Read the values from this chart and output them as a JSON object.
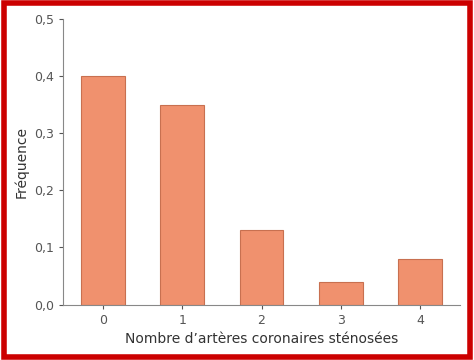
{
  "categories": [
    0,
    1,
    2,
    3,
    4
  ],
  "values": [
    0.4,
    0.35,
    0.13,
    0.04,
    0.08
  ],
  "bar_color": "#F0916E",
  "bar_edgecolor": "#C87050",
  "xlabel": "Nombre d’artères coronaires sténosées",
  "ylabel": "Fréquence",
  "ylim": [
    0.0,
    0.5
  ],
  "yticks": [
    0.0,
    0.1,
    0.2,
    0.3,
    0.4,
    0.5
  ],
  "ytick_labels": [
    "0,0",
    "0,1",
    "0,2",
    "0,3",
    "0,4",
    "0,5"
  ],
  "background_color": "#ffffff",
  "border_color": "#cc0000",
  "border_linewidth": 4,
  "bar_width": 0.55,
  "spine_color": "#888888",
  "tick_color": "#555555",
  "label_color": "#333333",
  "label_fontsize": 10,
  "tick_fontsize": 9
}
